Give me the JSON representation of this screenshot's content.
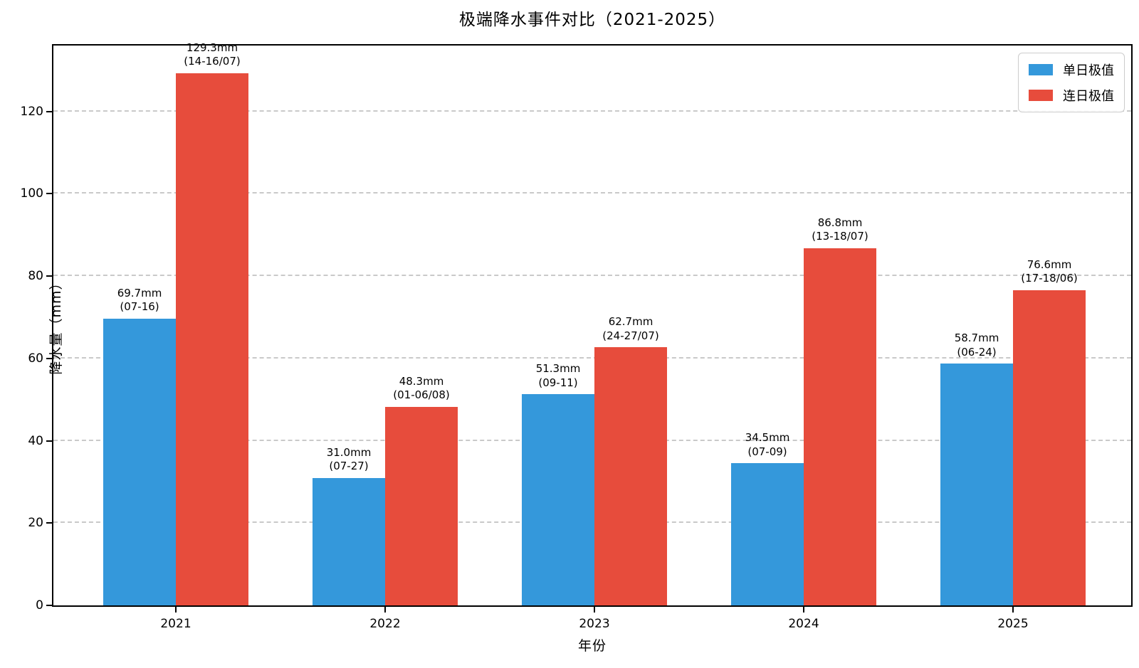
{
  "title": "极端降水事件对比（2021-2025）",
  "chart_data": {
    "type": "bar",
    "title": "极端降水事件对比（2021-2025）",
    "xlabel": "年份",
    "ylabel": "降水量（mm）",
    "ylim": [
      0,
      136
    ],
    "yticks": [
      0,
      20,
      40,
      60,
      80,
      100,
      120
    ],
    "grid": "horizontal-dashed",
    "legend_position": "upper-right",
    "categories": [
      "2021",
      "2022",
      "2023",
      "2024",
      "2025"
    ],
    "series": [
      {
        "name": "单日极值",
        "color": "#3498db",
        "values": [
          69.7,
          31.0,
          51.3,
          34.5,
          58.7
        ],
        "labels": [
          [
            "69.7mm",
            "(07-16)"
          ],
          [
            "31.0mm",
            "(07-27)"
          ],
          [
            "51.3mm",
            "(09-11)"
          ],
          [
            "34.5mm",
            "(07-09)"
          ],
          [
            "58.7mm",
            "(06-24)"
          ]
        ]
      },
      {
        "name": "连日极值",
        "color": "#e74c3c",
        "values": [
          129.3,
          48.3,
          62.7,
          86.8,
          76.6
        ],
        "labels": [
          [
            "129.3mm",
            "(14-16/07)"
          ],
          [
            "48.3mm",
            "(01-06/08)"
          ],
          [
            "62.7mm",
            "(24-27/07)"
          ],
          [
            "86.8mm",
            "(13-18/07)"
          ],
          [
            "76.6mm",
            "(17-18/06)"
          ]
        ]
      }
    ]
  }
}
